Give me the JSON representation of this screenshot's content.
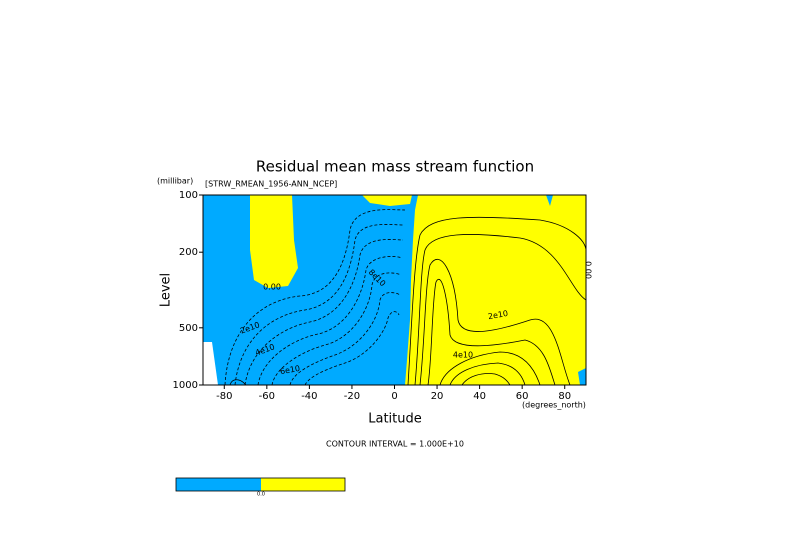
{
  "chart_data": {
    "type": "contour",
    "title": "Residual mean mass stream function",
    "subtitle": "[STRW_RMEAN_1956-ANN_NCEP]",
    "y_unit": "(millibar)",
    "x_unit": "(degrees_north)",
    "ylabel": "Level",
    "xlabel": "Latitude",
    "note": "CONTOUR INTERVAL = 1.000E+10",
    "xlim": [
      -90,
      90
    ],
    "xticks": [
      -80,
      -60,
      -40,
      -20,
      0,
      20,
      40,
      60,
      80
    ],
    "ylim": [
      1000,
      100
    ],
    "yticks": [
      100,
      200,
      500,
      1000
    ],
    "ylog": true,
    "contour_labels": [
      "0.00",
      "2e10",
      "4e10",
      "6e10",
      "8e10",
      "2e10",
      "4e10",
      "0.00"
    ],
    "fill_colors": [
      "#00aaff",
      "#ffff00"
    ],
    "colorbar_label": "0.0"
  }
}
